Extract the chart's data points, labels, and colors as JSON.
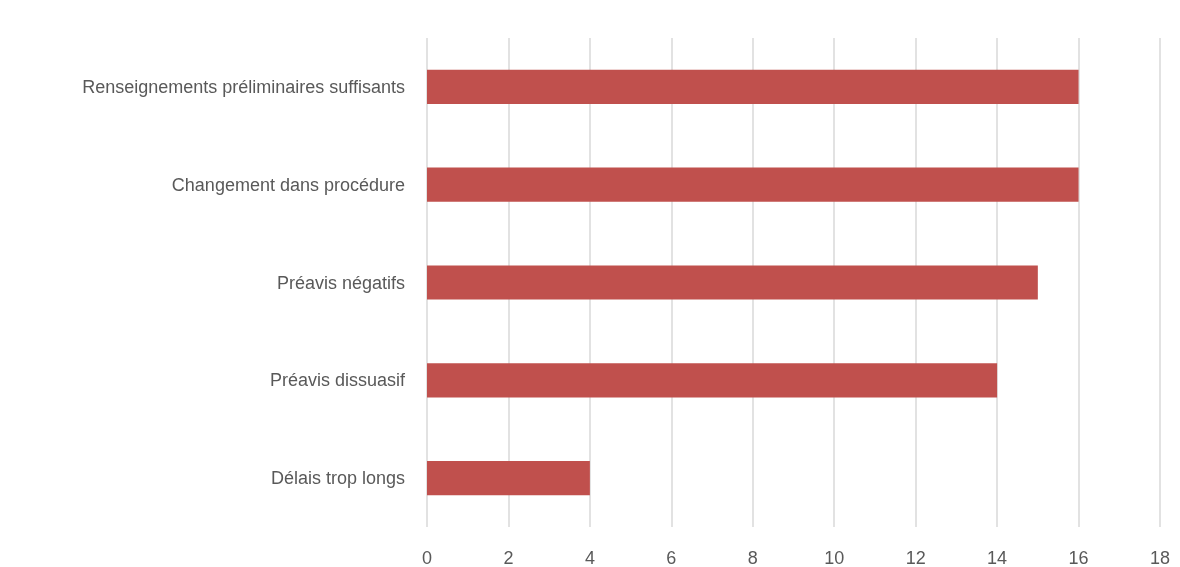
{
  "chart_data": {
    "type": "bar",
    "orientation": "horizontal",
    "categories": [
      "Renseignements préliminaires suffisants",
      "Changement dans procédure",
      "Préavis négatifs",
      "Préavis dissuasif",
      "Délais trop longs"
    ],
    "values": [
      16,
      16,
      15,
      14,
      4
    ],
    "color": "#c0504d",
    "xlim": [
      0,
      18
    ],
    "xticks": [
      0,
      2,
      4,
      6,
      8,
      10,
      12,
      14,
      16,
      18
    ],
    "grid": "x"
  }
}
